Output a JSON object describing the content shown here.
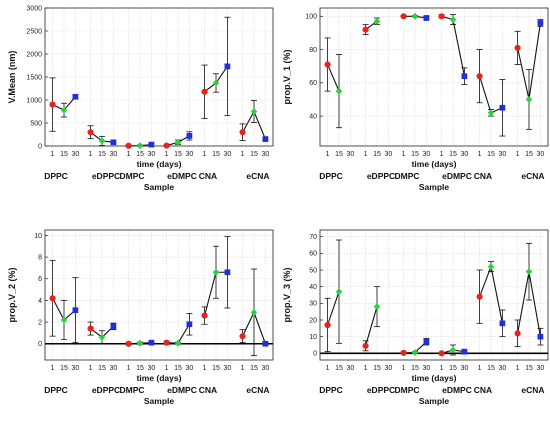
{
  "colors": {
    "red": "#e8231c",
    "green": "#2fd13a",
    "blue": "#1f2fe0",
    "line": "#111111"
  },
  "chart_data": [
    {
      "type": "line",
      "ylabel": "V.Mean (nm)",
      "xlabel": "time (days)",
      "group_axis_label": "Sample",
      "groups": [
        "DPPC",
        "eDPPC",
        "DMPC",
        "eDMPC",
        "CNA",
        "eCNA"
      ],
      "x_ticks": [
        "1",
        "15",
        "30"
      ],
      "ylim": [
        0,
        3000
      ],
      "yticks": [
        0,
        500,
        1000,
        1500,
        2000,
        2500,
        3000
      ],
      "zero_line": false,
      "series": [
        {
          "group": "DPPC",
          "values": [
            900,
            780,
            1070
          ],
          "err": [
            580,
            150,
            40
          ]
        },
        {
          "group": "eDPPC",
          "values": [
            300,
            110,
            80
          ],
          "err": [
            140,
            100,
            30
          ]
        },
        {
          "group": "DMPC",
          "values": [
            5,
            8,
            30
          ],
          "err": [
            15,
            15,
            20
          ]
        },
        {
          "group": "eDMPC",
          "values": [
            10,
            80,
            220
          ],
          "err": [
            15,
            50,
            90
          ]
        },
        {
          "group": "CNA",
          "values": [
            1180,
            1370,
            1730
          ],
          "err": [
            580,
            200,
            1070
          ]
        },
        {
          "group": "eCNA",
          "values": [
            300,
            750,
            150
          ],
          "err": [
            180,
            240,
            20
          ]
        }
      ]
    },
    {
      "type": "line",
      "ylabel": "prop.V_1 (%)",
      "xlabel": "time (days)",
      "group_axis_label": "Sample",
      "groups": [
        "DPPC",
        "eDPPC",
        "DMPC",
        "eDMPC",
        "CNA",
        "eCNA"
      ],
      "x_ticks": [
        "1",
        "15",
        "30"
      ],
      "ylim": [
        22,
        105
      ],
      "yticks": [
        40,
        60,
        80,
        100
      ],
      "zero_line": false,
      "series": [
        {
          "group": "DPPC",
          "values": [
            71,
            55
          ],
          "err": [
            16,
            22
          ]
        },
        {
          "group": "eDPPC",
          "values": [
            92,
            97
          ],
          "err": [
            3,
            2
          ]
        },
        {
          "group": "DMPC",
          "values": [
            100,
            100,
            99
          ],
          "err": [
            0.5,
            0.5,
            0.8
          ]
        },
        {
          "group": "eDMPC",
          "values": [
            100,
            98,
            64
          ],
          "err": [
            1,
            3,
            5
          ]
        },
        {
          "group": "CNA",
          "values": [
            64,
            42,
            45
          ],
          "err": [
            16,
            2,
            17
          ]
        },
        {
          "group": "eCNA",
          "values": [
            81,
            50,
            96
          ],
          "err": [
            10,
            18,
            2
          ]
        }
      ]
    },
    {
      "type": "line",
      "ylabel": "prop.V_2 (%)",
      "xlabel": "time (days)",
      "group_axis_label": "Sample",
      "groups": [
        "DPPC",
        "eDPPC",
        "DMPC",
        "eDMPC",
        "CNA",
        "eCNA"
      ],
      "x_ticks": [
        "1",
        "15",
        "30"
      ],
      "ylim": [
        -1.5,
        10.5
      ],
      "yticks": [
        0,
        2,
        4,
        6,
        8,
        10
      ],
      "zero_line": true,
      "series": [
        {
          "group": "DPPC",
          "values": [
            4.2,
            2.2,
            3.1
          ],
          "err": [
            3.5,
            1.8,
            3.0
          ]
        },
        {
          "group": "eDPPC",
          "values": [
            1.4,
            0.6,
            1.6
          ],
          "err": [
            0.6,
            0.6,
            0.3
          ]
        },
        {
          "group": "DMPC",
          "values": [
            0,
            0.05,
            0.1
          ],
          "err": [
            0.1,
            0.1,
            0.1
          ]
        },
        {
          "group": "eDMPC",
          "values": [
            0.1,
            0.05,
            1.8
          ],
          "err": [
            0.15,
            0.1,
            1.0
          ]
        },
        {
          "group": "CNA",
          "values": [
            2.6,
            6.6,
            6.6
          ],
          "err": [
            0.8,
            2.4,
            3.3
          ]
        },
        {
          "group": "eCNA",
          "values": [
            0.7,
            2.9,
            0
          ],
          "err": [
            0.6,
            4.0,
            0.1
          ]
        }
      ]
    },
    {
      "type": "line",
      "ylabel": "prop.V_3 (%)",
      "xlabel": "time (days)",
      "group_axis_label": "Sample",
      "groups": [
        "DPPC",
        "eDPPC",
        "DMPC",
        "eDMPC",
        "CNA",
        "eCNA"
      ],
      "x_ticks": [
        "1",
        "15",
        "30"
      ],
      "ylim": [
        -4,
        74
      ],
      "yticks": [
        0,
        10,
        20,
        30,
        40,
        50,
        60,
        70
      ],
      "zero_line": true,
      "series": [
        {
          "group": "DPPC",
          "values": [
            17,
            37
          ],
          "err": [
            16,
            31
          ]
        },
        {
          "group": "eDPPC",
          "values": [
            4.5,
            28
          ],
          "err": [
            3,
            12
          ]
        },
        {
          "group": "DMPC",
          "values": [
            0.3,
            0.5,
            7
          ],
          "err": [
            0.5,
            0.5,
            2
          ]
        },
        {
          "group": "eDMPC",
          "values": [
            0,
            2,
            1
          ],
          "err": [
            0.5,
            3,
            1
          ]
        },
        {
          "group": "CNA",
          "values": [
            34,
            52,
            18
          ],
          "err": [
            16,
            3,
            8
          ]
        },
        {
          "group": "eCNA",
          "values": [
            12,
            49,
            10
          ],
          "err": [
            8,
            17,
            5
          ]
        }
      ]
    }
  ]
}
